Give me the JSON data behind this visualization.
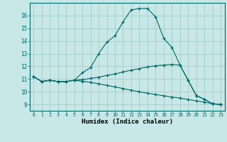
{
  "xlabel": "Humidex (Indice chaleur)",
  "background_color": "#c8e8e8",
  "grid_color": "#a8d0d0",
  "line_color": "#006868",
  "xlim": [
    -0.5,
    23.5
  ],
  "ylim": [
    8.5,
    17.0
  ],
  "yticks": [
    9,
    10,
    11,
    12,
    13,
    14,
    15,
    16
  ],
  "xticks": [
    0,
    1,
    2,
    3,
    4,
    5,
    6,
    7,
    8,
    9,
    10,
    11,
    12,
    13,
    14,
    15,
    16,
    17,
    18,
    19,
    20,
    21,
    22,
    23
  ],
  "series": [
    {
      "x": [
        0,
        1,
        2,
        3,
        4,
        5,
        6,
        7,
        8,
        9,
        10,
        11,
        12,
        13,
        14,
        15,
        16,
        17,
        18,
        19,
        20,
        21,
        22,
        23
      ],
      "y": [
        11.2,
        10.8,
        10.9,
        10.8,
        10.8,
        10.9,
        11.5,
        11.9,
        13.0,
        13.9,
        14.4,
        15.5,
        16.45,
        16.55,
        16.55,
        15.9,
        14.2,
        13.5,
        12.1,
        10.9,
        9.7,
        9.4,
        9.05,
        9.0
      ]
    },
    {
      "x": [
        0,
        1,
        2,
        3,
        4,
        5,
        6,
        7,
        8,
        9,
        10,
        11,
        12,
        13,
        14,
        15,
        16,
        17,
        18,
        19,
        20,
        21,
        22,
        23
      ],
      "y": [
        11.2,
        10.8,
        10.9,
        10.8,
        10.8,
        10.9,
        10.95,
        11.05,
        11.15,
        11.28,
        11.4,
        11.55,
        11.7,
        11.82,
        11.95,
        12.05,
        12.1,
        12.15,
        12.1,
        10.9,
        9.7,
        9.4,
        9.05,
        9.0
      ]
    },
    {
      "x": [
        0,
        1,
        2,
        3,
        4,
        5,
        6,
        7,
        8,
        9,
        10,
        11,
        12,
        13,
        14,
        15,
        16,
        17,
        18,
        19,
        20,
        21,
        22,
        23
      ],
      "y": [
        11.2,
        10.8,
        10.9,
        10.8,
        10.8,
        10.9,
        10.82,
        10.75,
        10.62,
        10.5,
        10.38,
        10.25,
        10.12,
        10.0,
        9.88,
        9.78,
        9.68,
        9.58,
        9.5,
        9.38,
        9.28,
        9.18,
        9.05,
        9.0
      ]
    }
  ]
}
